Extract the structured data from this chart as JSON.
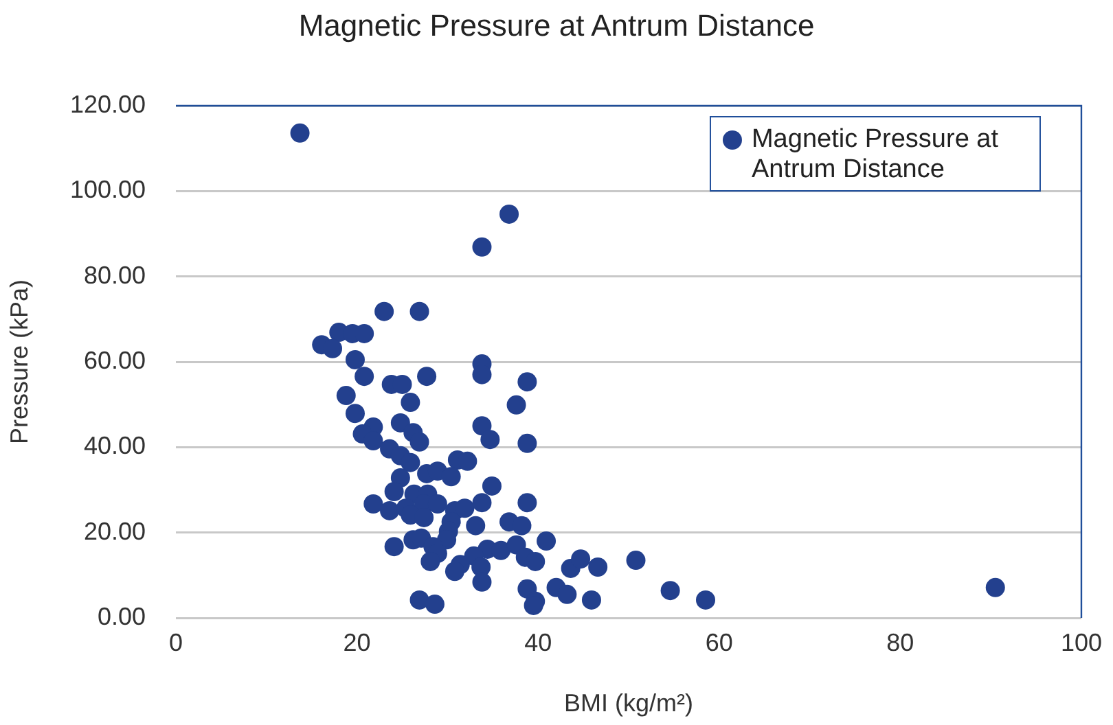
{
  "chart_data": {
    "type": "scatter",
    "title": "Magnetic Pressure at Antrum Distance",
    "xlabel": "BMI (kg/m²)",
    "ylabel": "Pressure (kPa)",
    "xlim": [
      0,
      100
    ],
    "xticks": [
      0,
      20,
      40,
      60,
      80,
      100
    ],
    "ylim": [
      0,
      120
    ],
    "yticks": [
      {
        "value": 0,
        "label": "0.00"
      },
      {
        "value": 20,
        "label": "20.00"
      },
      {
        "value": 40,
        "label": "40.00"
      },
      {
        "value": 60,
        "label": "60.00"
      },
      {
        "value": 80,
        "label": "80.00"
      },
      {
        "value": 100,
        "label": "100.00"
      },
      {
        "value": 120,
        "label": "120.00"
      }
    ],
    "grid": "y",
    "legend": "top right",
    "marker": "circle",
    "series": [
      {
        "name": "Magnetic Pressure at Antrum Distance",
        "color": "#23408e",
        "x": [
          13.7,
          36.8,
          33.8,
          23.0,
          26.9,
          18.0,
          19.5,
          20.8,
          16.1,
          17.3,
          19.8,
          33.8,
          33.8,
          20.8,
          27.7,
          38.8,
          23.8,
          25.0,
          18.8,
          25.9,
          37.6,
          19.8,
          24.8,
          33.8,
          34.7,
          21.8,
          20.6,
          21.8,
          26.2,
          26.9,
          38.8,
          23.6,
          24.8,
          25.9,
          31.1,
          32.2,
          27.7,
          28.9,
          30.4,
          24.8,
          34.9,
          24.1,
          26.3,
          27.8,
          21.8,
          23.6,
          25.4,
          27.4,
          28.9,
          30.8,
          31.9,
          33.8,
          38.8,
          25.9,
          27.4,
          30.4,
          33.1,
          36.8,
          38.2,
          30.1,
          29.9,
          24.1,
          26.2,
          27.1,
          28.4,
          28.9,
          28.1,
          34.4,
          35.9,
          37.6,
          40.9,
          32.9,
          31.4,
          30.8,
          33.7,
          38.6,
          39.7,
          33.8,
          43.6,
          44.7,
          46.6,
          42.0,
          43.2,
          38.8,
          39.7,
          45.9,
          26.9,
          28.6,
          50.8,
          54.6,
          58.5,
          90.5,
          39.5
        ],
        "values": [
          113.6,
          94.6,
          86.9,
          71.8,
          71.8,
          66.9,
          66.6,
          66.6,
          64.0,
          63.1,
          60.5,
          59.5,
          57.0,
          56.6,
          56.6,
          55.3,
          54.7,
          54.7,
          52.1,
          50.5,
          49.9,
          47.9,
          45.7,
          45.0,
          41.8,
          44.7,
          43.1,
          41.5,
          43.4,
          41.2,
          40.9,
          39.6,
          38.0,
          36.4,
          37.0,
          36.7,
          33.8,
          34.4,
          33.1,
          32.8,
          30.9,
          29.6,
          29.0,
          29.0,
          26.7,
          25.1,
          25.7,
          26.7,
          26.7,
          25.1,
          25.7,
          27.0,
          27.0,
          24.1,
          23.5,
          22.5,
          21.6,
          22.5,
          21.6,
          20.3,
          18.3,
          16.7,
          18.3,
          18.7,
          16.7,
          15.1,
          13.2,
          16.1,
          15.8,
          17.1,
          18.0,
          14.5,
          12.5,
          10.9,
          11.9,
          14.2,
          13.2,
          8.4,
          11.6,
          13.8,
          11.9,
          7.1,
          5.5,
          6.8,
          3.9,
          4.2,
          4.2,
          3.2,
          13.5,
          6.4,
          4.2,
          7.1,
          2.9
        ]
      }
    ]
  }
}
